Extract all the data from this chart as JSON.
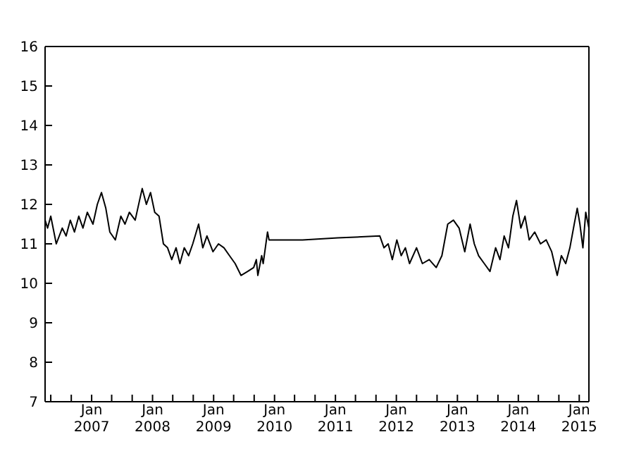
{
  "chart_data": {
    "type": "line",
    "x": [
      "2006-03-28",
      "2006-04-12",
      "2006-05-01",
      "2006-06-03",
      "2006-07-09",
      "2006-08-01",
      "2006-08-26",
      "2006-09-20",
      "2006-10-16",
      "2006-11-10",
      "2006-12-06",
      "2007-01-09",
      "2007-02-04",
      "2007-03-01",
      "2007-03-27",
      "2007-04-20",
      "2007-05-23",
      "2007-06-25",
      "2007-07-20",
      "2007-08-15",
      "2007-09-19",
      "2007-10-15",
      "2007-10-31",
      "2007-11-25",
      "2007-12-20",
      "2008-01-14",
      "2008-02-09",
      "2008-03-06",
      "2008-03-31",
      "2008-04-25",
      "2008-05-21",
      "2008-06-13",
      "2008-07-09",
      "2008-08-04",
      "2008-08-29",
      "2008-10-03",
      "2008-10-28",
      "2008-11-22",
      "2008-12-28",
      "2009-01-30",
      "2009-03-04",
      "2009-04-06",
      "2009-05-10",
      "2009-06-14",
      "2009-07-24",
      "2009-08-29",
      "2009-09-14",
      "2009-09-23",
      "2009-10-16",
      "2009-10-25",
      "2009-11-20",
      "2009-11-29",
      "2010-06-18",
      "2011-01-15",
      "2011-09-24",
      "2011-10-19",
      "2011-11-13",
      "2011-12-08",
      "2012-01-04",
      "2012-01-30",
      "2012-02-24",
      "2012-03-20",
      "2012-05-01",
      "2012-06-05",
      "2012-07-16",
      "2012-08-27",
      "2012-09-30",
      "2012-11-04",
      "2012-12-08",
      "2013-01-11",
      "2013-02-14",
      "2013-03-18",
      "2013-04-12",
      "2013-05-08",
      "2013-06-11",
      "2013-07-15",
      "2013-08-18",
      "2013-09-13",
      "2013-10-08",
      "2013-11-03",
      "2013-11-29",
      "2013-12-21",
      "2014-01-16",
      "2014-02-10",
      "2014-03-07",
      "2014-04-09",
      "2014-05-14",
      "2014-06-17",
      "2014-07-20",
      "2014-08-22",
      "2014-09-16",
      "2014-10-12",
      "2014-11-06",
      "2014-12-02",
      "2014-12-20",
      "2015-01-05",
      "2015-01-23",
      "2015-02-09",
      "2015-02-28"
    ],
    "series": [
      {
        "color": "#000000",
        "values": [
          11.6,
          11.4,
          11.7,
          11.0,
          11.4,
          11.2,
          11.6,
          11.3,
          11.7,
          11.4,
          11.8,
          11.5,
          12.0,
          12.3,
          11.9,
          11.3,
          11.1,
          11.7,
          11.5,
          11.8,
          11.6,
          12.1,
          12.4,
          12.0,
          12.3,
          11.8,
          11.7,
          11.0,
          10.9,
          10.6,
          10.9,
          10.5,
          10.9,
          10.7,
          11.0,
          11.5,
          10.9,
          11.2,
          10.8,
          11.0,
          10.9,
          10.7,
          10.5,
          10.2,
          10.3,
          10.4,
          10.6,
          10.2,
          10.7,
          10.5,
          11.3,
          11.1,
          11.1,
          11.15,
          11.2,
          10.9,
          11.0,
          10.6,
          11.1,
          10.7,
          10.9,
          10.5,
          10.9,
          10.5,
          10.6,
          10.4,
          10.7,
          11.5,
          11.6,
          11.4,
          10.8,
          11.5,
          11.0,
          10.7,
          10.5,
          10.3,
          10.9,
          10.6,
          11.2,
          10.9,
          11.7,
          12.1,
          11.4,
          11.7,
          11.1,
          11.3,
          11.0,
          11.1,
          10.8,
          10.2,
          10.7,
          10.5,
          10.9,
          11.5,
          11.9,
          11.5,
          10.9,
          11.8,
          11.4
        ]
      }
    ],
    "xlim": [
      "2006-03-28",
      "2015-02-28"
    ],
    "xticks": [
      {
        "value": "2006-05-01",
        "label": null
      },
      {
        "value": "2006-09-01",
        "label": null
      },
      {
        "value": "2007-01-01",
        "label": "Jan\n2007"
      },
      {
        "value": "2007-05-01",
        "label": null
      },
      {
        "value": "2007-09-01",
        "label": null
      },
      {
        "value": "2008-01-01",
        "label": "Jan\n2008"
      },
      {
        "value": "2008-05-01",
        "label": null
      },
      {
        "value": "2008-09-01",
        "label": null
      },
      {
        "value": "2009-01-01",
        "label": "Jan\n2009"
      },
      {
        "value": "2009-05-01",
        "label": null
      },
      {
        "value": "2009-09-01",
        "label": null
      },
      {
        "value": "2010-01-01",
        "label": "Jan\n2010"
      },
      {
        "value": "2010-05-01",
        "label": null
      },
      {
        "value": "2010-09-01",
        "label": null
      },
      {
        "value": "2011-01-01",
        "label": "Jan\n2011"
      },
      {
        "value": "2011-05-01",
        "label": null
      },
      {
        "value": "2011-09-01",
        "label": null
      },
      {
        "value": "2012-01-01",
        "label": "Jan\n2012"
      },
      {
        "value": "2012-05-01",
        "label": null
      },
      {
        "value": "2012-09-01",
        "label": null
      },
      {
        "value": "2013-01-01",
        "label": "Jan\n2013"
      },
      {
        "value": "2013-05-01",
        "label": null
      },
      {
        "value": "2013-09-01",
        "label": null
      },
      {
        "value": "2014-01-01",
        "label": "Jan\n2014"
      },
      {
        "value": "2014-05-01",
        "label": null
      },
      {
        "value": "2014-09-01",
        "label": null
      },
      {
        "value": "2015-01-01",
        "label": "Jan\n2015"
      }
    ],
    "ylim": [
      7,
      16
    ],
    "yticks": [
      7,
      8,
      9,
      10,
      11,
      12,
      13,
      14,
      15,
      16
    ],
    "grid": false,
    "legend": false,
    "marker": "none",
    "line_style": "solid"
  }
}
